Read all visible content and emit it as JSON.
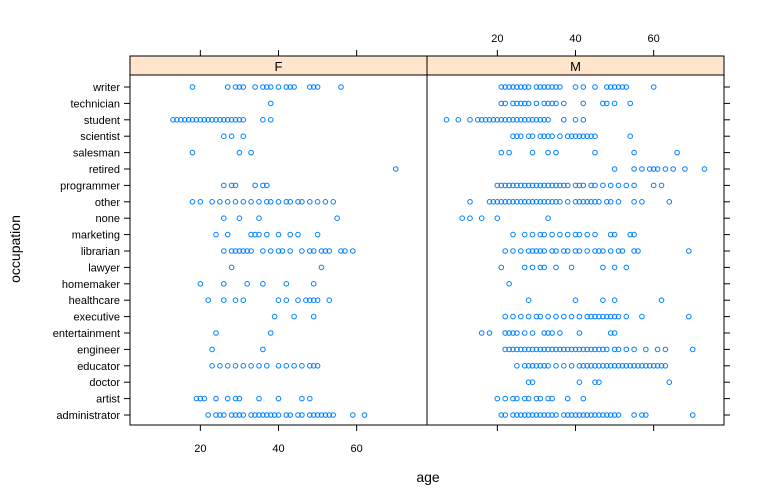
{
  "chart_data": {
    "type": "scatter",
    "title": "",
    "xlabel": "age",
    "ylabel": "occupation",
    "xlim": [
      2,
      78
    ],
    "x_ticks": [
      20,
      40,
      60
    ],
    "x_tick_labels": [
      "20",
      "40",
      "60"
    ],
    "marker_color": "#0080ff",
    "strip_color": "#ffe5cc",
    "panels": [
      {
        "name": "F",
        "points": {
          "writer": [
            18,
            27,
            29,
            30,
            31,
            34,
            36,
            37,
            38,
            40,
            42,
            43,
            44,
            48,
            49,
            50,
            56
          ],
          "technician": [
            38
          ],
          "student": [
            13,
            14,
            15,
            16,
            17,
            18,
            19,
            20,
            21,
            22,
            23,
            24,
            25,
            26,
            27,
            28,
            29,
            30,
            31,
            36,
            38
          ],
          "scientist": [
            26,
            28,
            31
          ],
          "salesman": [
            18,
            30,
            33
          ],
          "retired": [
            70
          ],
          "programmer": [
            26,
            28,
            29,
            34,
            36,
            37
          ],
          "other": [
            18,
            20,
            23,
            25,
            27,
            29,
            31,
            33,
            35,
            37,
            38,
            40,
            42,
            43,
            45,
            46,
            48,
            50,
            52,
            54
          ],
          "none": [
            26,
            30,
            35,
            55
          ],
          "marketing": [
            24,
            27,
            33,
            34,
            35,
            37,
            40,
            43,
            45,
            50
          ],
          "librarian": [
            26,
            28,
            29,
            30,
            31,
            32,
            33,
            36,
            38,
            40,
            41,
            43,
            46,
            48,
            49,
            51,
            52,
            53,
            56,
            57,
            59
          ],
          "lawyer": [
            28,
            51
          ],
          "homemaker": [
            20,
            26,
            32,
            36,
            42,
            49
          ],
          "healthcare": [
            22,
            26,
            29,
            31,
            40,
            42,
            45,
            47,
            48,
            49,
            50,
            53
          ],
          "executive": [
            39,
            44,
            49
          ],
          "entertainment": [
            24,
            38
          ],
          "engineer": [
            23,
            36
          ],
          "educator": [
            23,
            25,
            27,
            29,
            31,
            33,
            35,
            37,
            40,
            42,
            44,
            46,
            48,
            49,
            50
          ],
          "doctor": [],
          "artist": [
            19,
            20,
            21,
            24,
            27,
            29,
            30,
            35,
            40,
            46,
            48
          ],
          "administrator": [
            22,
            24,
            25,
            26,
            28,
            29,
            30,
            31,
            33,
            34,
            35,
            36,
            37,
            38,
            39,
            40,
            42,
            43,
            45,
            46,
            48,
            49,
            50,
            51,
            52,
            53,
            54,
            59,
            62
          ]
        }
      },
      {
        "name": "M",
        "points": {
          "writer": [
            21,
            22,
            23,
            24,
            25,
            26,
            27,
            28,
            30,
            31,
            32,
            33,
            34,
            35,
            36,
            40,
            42,
            45,
            48,
            49,
            50,
            51,
            52,
            53,
            60
          ],
          "technician": [
            21,
            22,
            24,
            25,
            26,
            27,
            28,
            30,
            32,
            33,
            34,
            35,
            37,
            42,
            47,
            48,
            50,
            54
          ],
          "student": [
            7,
            10,
            13,
            15,
            16,
            17,
            18,
            19,
            20,
            21,
            22,
            23,
            24,
            25,
            26,
            27,
            28,
            29,
            30,
            31,
            32,
            33,
            37,
            40,
            42
          ],
          "scientist": [
            24,
            25,
            26,
            28,
            29,
            31,
            32,
            33,
            34,
            36,
            38,
            39,
            40,
            41,
            42,
            43,
            44,
            45,
            54
          ],
          "salesman": [
            21,
            23,
            29,
            33,
            35,
            45,
            55,
            66
          ],
          "retired": [
            50,
            55,
            57,
            59,
            60,
            61,
            63,
            65,
            68,
            73
          ],
          "programmer": [
            20,
            21,
            22,
            23,
            24,
            25,
            26,
            27,
            28,
            29,
            30,
            31,
            32,
            33,
            34,
            35,
            36,
            37,
            38,
            40,
            41,
            42,
            44,
            45,
            47,
            49,
            51,
            53,
            55,
            60,
            62
          ],
          "other": [
            13,
            18,
            19,
            20,
            21,
            22,
            23,
            24,
            25,
            26,
            27,
            28,
            29,
            30,
            31,
            32,
            33,
            34,
            35,
            36,
            38,
            40,
            41,
            42,
            43,
            44,
            45,
            46,
            48,
            49,
            51,
            55,
            57,
            64
          ],
          "none": [
            11,
            13,
            16,
            20,
            33
          ],
          "marketing": [
            24,
            27,
            29,
            31,
            32,
            34,
            36,
            38,
            40,
            41,
            43,
            45,
            49,
            50,
            54,
            55
          ],
          "librarian": [
            22,
            24,
            26,
            28,
            29,
            30,
            31,
            32,
            34,
            35,
            37,
            38,
            40,
            41,
            43,
            45,
            46,
            47,
            49,
            51,
            52,
            55,
            56,
            69
          ],
          "lawyer": [
            21,
            27,
            29,
            31,
            32,
            35,
            39,
            47,
            50,
            53
          ],
          "homemaker": [
            23
          ],
          "healthcare": [
            28,
            40,
            47,
            50,
            62
          ],
          "executive": [
            22,
            24,
            26,
            28,
            30,
            31,
            33,
            35,
            37,
            39,
            41,
            43,
            44,
            45,
            46,
            47,
            48,
            49,
            50,
            51,
            53,
            57,
            69
          ],
          "entertainment": [
            16,
            18,
            22,
            23,
            24,
            25,
            27,
            29,
            32,
            33,
            34,
            36,
            41,
            49,
            50
          ],
          "engineer": [
            22,
            23,
            24,
            25,
            26,
            27,
            28,
            29,
            30,
            31,
            32,
            33,
            34,
            35,
            36,
            37,
            38,
            39,
            40,
            41,
            42,
            43,
            44,
            45,
            46,
            47,
            48,
            50,
            51,
            53,
            55,
            58,
            61,
            63,
            70
          ],
          "educator": [
            25,
            27,
            28,
            29,
            30,
            31,
            32,
            33,
            35,
            37,
            39,
            41,
            42,
            43,
            44,
            45,
            46,
            47,
            48,
            49,
            50,
            51,
            52,
            53,
            54,
            55,
            56,
            57,
            58,
            59,
            60,
            61,
            62,
            63
          ],
          "doctor": [
            28,
            29,
            41,
            45,
            46,
            64
          ],
          "artist": [
            20,
            22,
            24,
            25,
            27,
            28,
            30,
            31,
            33,
            34,
            38,
            42
          ],
          "administrator": [
            21,
            22,
            24,
            25,
            26,
            27,
            28,
            29,
            30,
            31,
            32,
            33,
            34,
            35,
            37,
            38,
            39,
            40,
            41,
            42,
            43,
            44,
            45,
            46,
            47,
            48,
            49,
            50,
            51,
            55,
            57,
            58,
            70
          ]
        }
      }
    ],
    "categories": [
      "writer",
      "technician",
      "student",
      "scientist",
      "salesman",
      "retired",
      "programmer",
      "other",
      "none",
      "marketing",
      "librarian",
      "lawyer",
      "homemaker",
      "healthcare",
      "executive",
      "entertainment",
      "engineer",
      "educator",
      "doctor",
      "artist",
      "administrator"
    ],
    "grid": false,
    "legend": "none"
  }
}
